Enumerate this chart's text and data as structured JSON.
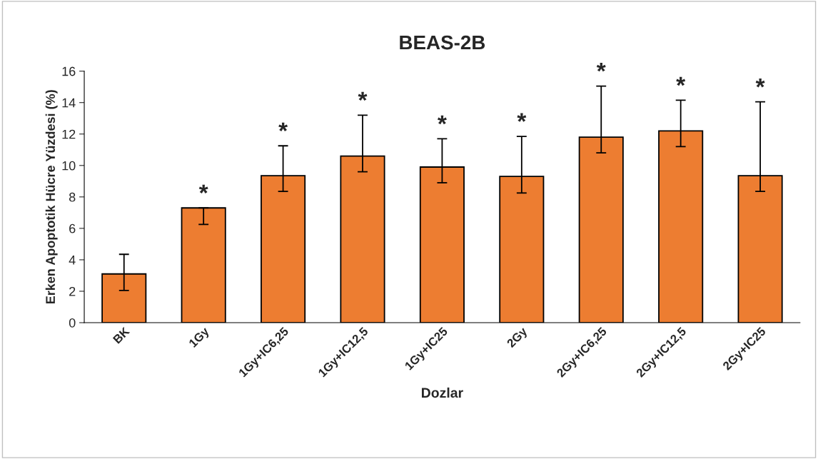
{
  "chart_data": {
    "type": "bar",
    "title": "BEAS-2B",
    "xlabel": "Dozlar",
    "ylabel": "Erken Apoptotik Hücre Yüzdesi (%)",
    "categories": [
      "BK",
      "1Gy",
      "1Gy+IC6,25",
      "1Gy+IC12,5",
      "1Gy+IC25",
      "2Gy",
      "2Gy+IC6,25",
      "2Gy+IC12,5",
      "2Gy+IC25"
    ],
    "values": [
      3.1,
      7.3,
      9.35,
      10.6,
      9.9,
      9.3,
      11.8,
      12.2,
      9.35
    ],
    "color": "#ed7d31",
    "errors": [
      [
        2.05,
        4.35
      ],
      [
        6.25,
        7.3
      ],
      [
        8.35,
        11.25
      ],
      [
        9.6,
        13.2
      ],
      [
        8.9,
        11.7
      ],
      [
        8.25,
        11.85
      ],
      [
        10.8,
        15.05
      ],
      [
        11.2,
        14.15
      ],
      [
        8.35,
        14.05
      ]
    ],
    "ylim": [
      0,
      16
    ],
    "yticks": [
      0,
      2,
      4,
      6,
      8,
      10,
      12,
      14,
      16
    ],
    "grid": false,
    "legend": false,
    "annotations": [
      {
        "text": "*",
        "x": "1Gy",
        "y": 7.3
      },
      {
        "text": "*",
        "x": "1Gy+IC6,25",
        "y": 11.25
      },
      {
        "text": "*",
        "x": "1Gy+IC12,5",
        "y": 13.2
      },
      {
        "text": "*",
        "x": "1Gy+IC25",
        "y": 11.7
      },
      {
        "text": "*",
        "x": "2Gy",
        "y": 11.85
      },
      {
        "text": "*",
        "x": "2Gy+IC6,25",
        "y": 15.05
      },
      {
        "text": "*",
        "x": "2Gy+IC12,5",
        "y": 14.15
      },
      {
        "text": "*",
        "x": "2Gy+IC25",
        "y": 14.05
      }
    ]
  }
}
